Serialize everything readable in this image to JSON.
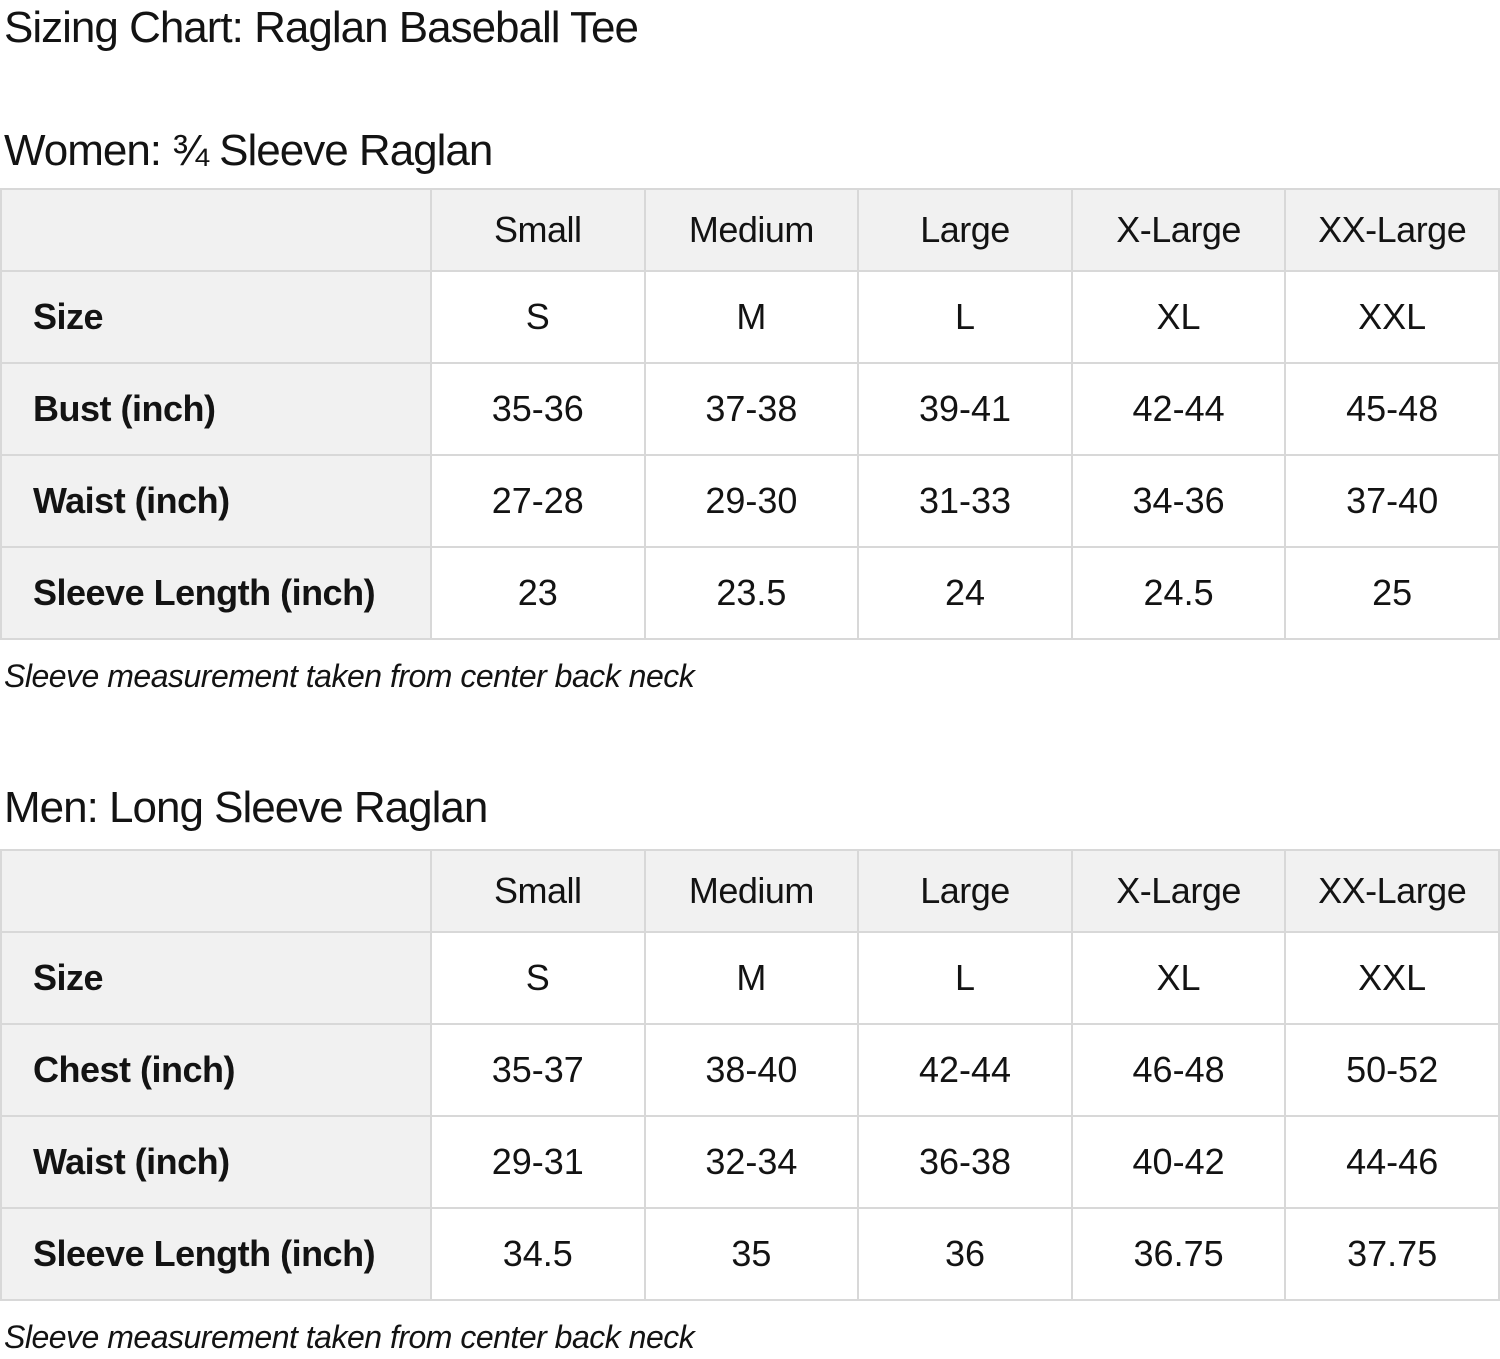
{
  "page": {
    "title": "Sizing Chart: Raglan Baseball Tee"
  },
  "colors": {
    "text": "#131313",
    "header_bg": "#f1f1f1",
    "border": "#d8d8d8",
    "cell_bg": "#ffffff"
  },
  "women": {
    "heading": "Women: ¾ Sleeve Raglan",
    "note": "Sleeve measurement taken from center back neck",
    "table": {
      "columns": [
        "",
        "Small",
        "Medium",
        "Large",
        "X-Large",
        "XX-Large"
      ],
      "rows": [
        {
          "label": "Size",
          "values": [
            "S",
            "M",
            "L",
            "XL",
            "XXL"
          ]
        },
        {
          "label": "Bust (inch)",
          "values": [
            "35-36",
            "37-38",
            "39-41",
            "42-44",
            "45-48"
          ]
        },
        {
          "label": "Waist (inch)",
          "values": [
            "27-28",
            "29-30",
            "31-33",
            "34-36",
            "37-40"
          ]
        },
        {
          "label": "Sleeve Length (inch)",
          "values": [
            "23",
            "23.5",
            "24",
            "24.5",
            "25"
          ]
        }
      ]
    }
  },
  "men": {
    "heading": "Men: Long Sleeve Raglan",
    "note": "Sleeve measurement taken from center back neck",
    "table": {
      "columns": [
        "",
        "Small",
        "Medium",
        "Large",
        "X-Large",
        "XX-Large"
      ],
      "rows": [
        {
          "label": "Size",
          "values": [
            "S",
            "M",
            "L",
            "XL",
            "XXL"
          ]
        },
        {
          "label": "Chest (inch)",
          "values": [
            "35-37",
            "38-40",
            "42-44",
            "46-48",
            "50-52"
          ]
        },
        {
          "label": "Waist (inch)",
          "values": [
            "29-31",
            "32-34",
            "36-38",
            "40-42",
            "44-46"
          ]
        },
        {
          "label": "Sleeve Length (inch)",
          "values": [
            "34.5",
            "35",
            "36",
            "36.75",
            "37.75"
          ]
        }
      ]
    }
  }
}
